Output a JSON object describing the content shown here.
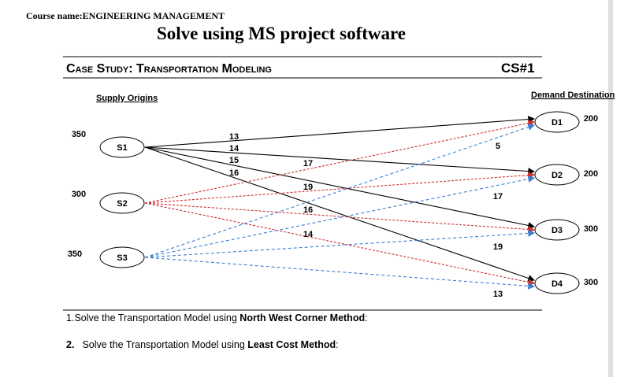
{
  "header": {
    "course": "Course name:ENGINEERING MANAGEMENT",
    "title": "Solve using MS project software"
  },
  "case_study": {
    "title": "Case Study: Transportation Modeling",
    "code": "CS#1"
  },
  "diagram": {
    "supply_label": "Supply Origins",
    "demand_label": "Demand Destination",
    "sources": [
      {
        "label": "S1",
        "supply": 350
      },
      {
        "label": "S2",
        "supply": 300
      },
      {
        "label": "S3",
        "supply": 350
      }
    ],
    "destinations": [
      {
        "label": "D1",
        "demand": 200
      },
      {
        "label": "D2",
        "demand": 200
      },
      {
        "label": "D3",
        "demand": 300
      },
      {
        "label": "D4",
        "demand": 300
      }
    ],
    "costs": [
      13,
      14,
      15,
      16,
      17,
      19,
      16,
      14,
      5,
      17,
      19,
      13
    ]
  },
  "questions": [
    {
      "number": "1.",
      "text": "Solve the Transportation Model using ",
      "bold": "North West Corner Method",
      "end": ":"
    },
    {
      "number": "2.",
      "text": "Solve the Transportation Model using ",
      "bold": "Least Cost Method",
      "end": ":"
    }
  ]
}
